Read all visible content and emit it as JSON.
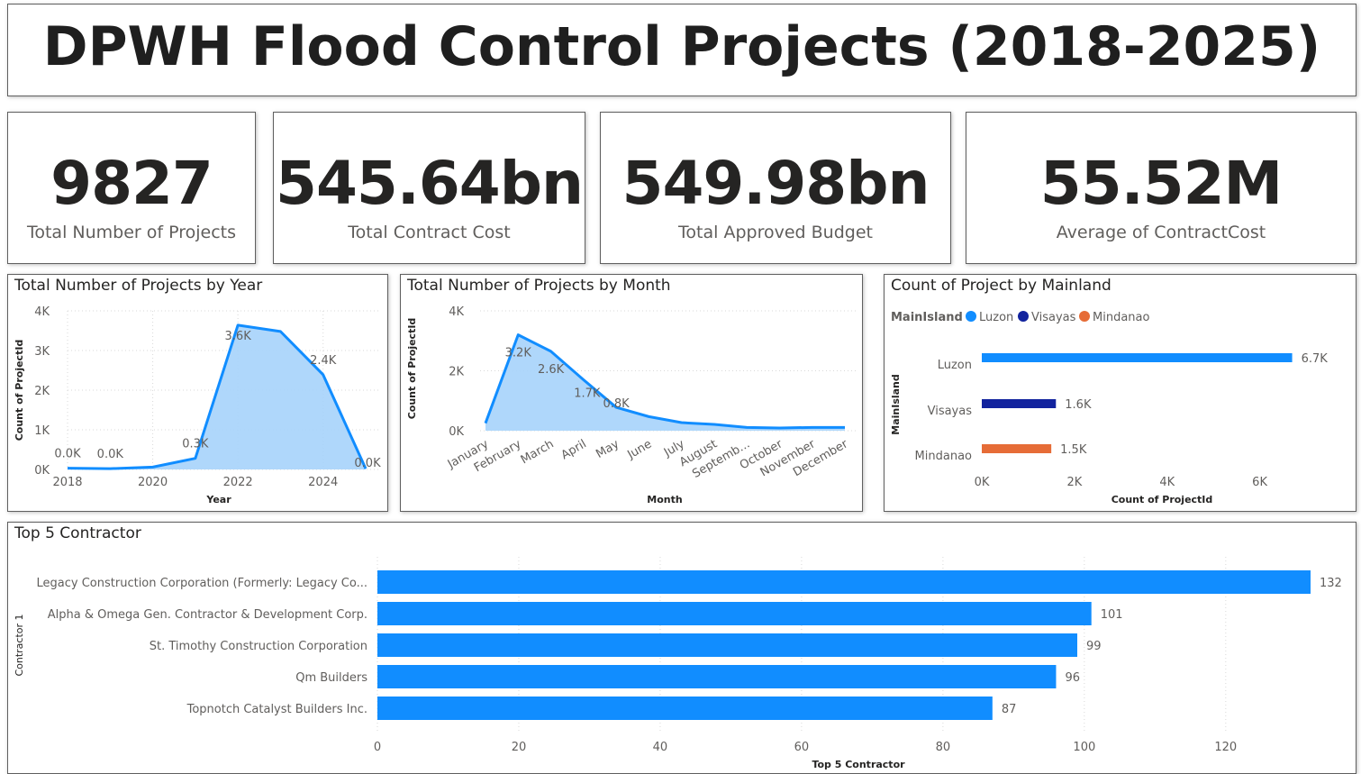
{
  "dashboard": {
    "title": "DPWH Flood Control Projects (2018-2025)"
  },
  "kpis": [
    {
      "value": "9827",
      "label": "Total Number of Projects"
    },
    {
      "value": "545.64bn",
      "label": "Total Contract Cost"
    },
    {
      "value": "549.98bn",
      "label": "Total Approved Budget"
    },
    {
      "value": "55.52M",
      "label": "Average of ContractCost"
    }
  ],
  "colors": {
    "accent": "#118DFF",
    "area_fill": "#A6D3FB",
    "luzon": "#118DFF",
    "visayas": "#12239E",
    "mindanao": "#E66C37"
  },
  "chart_data": [
    {
      "type": "area",
      "title": "Total Number of Projects by Year",
      "xlabel": "Year",
      "ylabel": "Count of ProjectId",
      "x": [
        2018,
        2019,
        2020,
        2021,
        2022,
        2023,
        2024,
        2025
      ],
      "values": [
        30,
        20,
        60,
        280,
        3640,
        3480,
        2390,
        20
      ],
      "data_labels": [
        "0.0K",
        "0.0K",
        "",
        "0.3K",
        "3.6K",
        "",
        "2.4K",
        "0.0K"
      ],
      "x_ticks": [
        "2018",
        "2020",
        "2022",
        "2024"
      ],
      "y_ticks": [
        "0K",
        "1K",
        "2K",
        "3K",
        "4K"
      ],
      "ylim": [
        0,
        4000
      ],
      "grid": true
    },
    {
      "type": "area",
      "title": "Total Number of Projects by Month",
      "xlabel": "Month",
      "ylabel": "Count of ProjectId",
      "categories": [
        "January",
        "February",
        "March",
        "April",
        "May",
        "June",
        "July",
        "August",
        "Septemb...",
        "October",
        "November",
        "December"
      ],
      "values": [
        250,
        3200,
        2650,
        1700,
        780,
        470,
        270,
        210,
        110,
        90,
        110,
        110
      ],
      "data_labels": [
        "",
        "3.2K",
        "2.6K",
        "1.7K",
        "0.8K",
        "",
        "",
        "",
        "",
        "",
        "",
        ""
      ],
      "y_ticks": [
        "0K",
        "2K",
        "4K"
      ],
      "ylim": [
        0,
        4000
      ],
      "grid": true
    },
    {
      "type": "bar",
      "title": "Count of Project by Mainland",
      "xlabel": "Count of ProjectId",
      "ylabel": "MainIsland",
      "legend_title": "MainIsland",
      "legend_position": "top-left",
      "categories": [
        "Luzon",
        "Visayas",
        "Mindanao"
      ],
      "values": [
        6700,
        1600,
        1500
      ],
      "data_labels": [
        "6.7K",
        "1.6K",
        "1.5K"
      ],
      "x_ticks": [
        "0K",
        "2K",
        "4K",
        "6K"
      ],
      "xlim": [
        0,
        7000
      ]
    },
    {
      "type": "bar",
      "title": "Top 5 Contractor",
      "xlabel": "Top 5 Contractor",
      "ylabel": "Contractor 1",
      "categories": [
        "Legacy Construction Corporation (Formerly: Legacy Co...",
        "Alpha & Omega Gen. Contractor & Development Corp.",
        "St. Timothy Construction Corporation",
        "Qm Builders",
        "Topnotch Catalyst Builders Inc."
      ],
      "values": [
        132,
        101,
        99,
        96,
        87
      ],
      "x_ticks": [
        "0",
        "20",
        "40",
        "60",
        "80",
        "100",
        "120"
      ],
      "xlim": [
        0,
        132
      ],
      "grid": true
    }
  ]
}
